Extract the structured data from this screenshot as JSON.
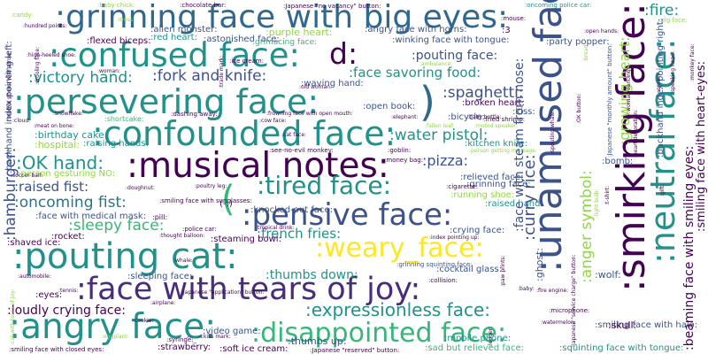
{
  "words": {
    "grinning_big_eyes": ":grinning face with big eyes:",
    "confused_face": ":confused face:",
    "d_token": "d:",
    "persevering_face": ":persevering face:",
    "close_paren": ")",
    "confounded_face": ":confounded face:",
    "musical_notes": ":musical notes:",
    "pouting_cat": ":pouting cat:",
    "tears_of_joy": ":face with tears of joy:",
    "angry_face": ":angry face:",
    "disappointed_face": ":disappointed face:",
    "pensive_face": ":pensive face:",
    "tired_face": ":tired face:",
    "weary_face": ":weary_face:",
    "unamused_face": ":unamused face:",
    "smirking_face": ":smirking face:",
    "neutral_face": ":neutral face:",
    "victory_hand": ":victory hand:",
    "fork_and_knife": ":fork and knife:",
    "pouting_face": ":pouting face:",
    "face_savoring_food": ":face savoring food:",
    "spaghetti": ":spaghetti:",
    "ok_hand": ":OK hand:",
    "raised_fist": ":raised fist:",
    "oncoming_fist": ":oncoming fist:",
    "open_paren": "(",
    "sleepy_face": ":sleepy face:",
    "french_fries": ":french fries:",
    "hamburger": ":hamburger:",
    "water_pistol": ":water pistol:",
    "pizza": ":pizza:",
    "curry_rice": ":curry rice:",
    "thumbs_down": ":thumbs down:",
    "expressionless_face": ":expressionless face:",
    "loudly_crying_face": ":loudly crying face:",
    "fire": ":fire:",
    "purple_heart": ":purple heart:",
    "angry_face_horns": ":angry face with horns:",
    "alien_monster": ":alien monster:",
    "red_heart": ":red heart:",
    "astonished_face": ":astonished face:",
    "flexed_biceps": ":flexed biceps:",
    "grimacing_face": ":grimacing face:",
    "winking_tongue": ":winking face with tongue:",
    "party_popper": ":party popper:",
    "beaming_face": ":beaming face with smiling eyes:",
    "smiling_heart_eyes": ":smiling face with heart-eyes:",
    "growing_heart": ":growing heart:",
    "anger_symbol": ":anger symbol:",
    "face_steam_nose": ":face with steam from nose:",
    "open_book": ":open book:",
    "broken_heart": ":broken heart:",
    "birthday_cake": ":birthday cake:",
    "person_gesturing_no": ":person gesturing NO:",
    "raising_hands": ":raising hands:",
    "knocked_out_face": ":knocked-out face:",
    "cocktail_glass": ":cocktail glass:",
    "thumbs_up": ":thumbs up:",
    "smiling_halo": ":smiling face with halo:",
    "squinting_tongue": ":squinting face with tongue:",
    "face_medical_mask": ":face with medical mask:",
    "rocket": ":rocket:",
    "shaved_ice": ":shaved ice:",
    "steaming_bowl": ":steaming bowl:",
    "crying_face": ":crying face:",
    "raised_hand": ":raised hand:",
    "sleeping_face": ":sleeping face:",
    "eyes": ":eyes:",
    "video_game": ":video game:",
    "strawberry": ":strawberry:",
    "soft_ice_cream": ":soft ice cream:",
    "mobile_phone": ":mobile phone:",
    "skull": ":skull:",
    "relieved_face": ":relieved face:",
    "grinning_face": ":grinning face:",
    "running_shoe": ":running shoe:",
    "bomb": ":bomb:",
    "kiss": ":kiss:",
    "wolf": ":wolf:",
    "ghost": ":ghost:",
    "kitchen_knife": ":kitchen knife:",
    "bicycle": ":bicycle:",
    "waving_hand": ":waving hand:",
    "hospital": ":hospital:",
    "backhand_left": ":backhand index pointing left:",
    "backhand_right": ":backhand index pointing right:",
    "emoticon": "(-:)",
    "small_caret": "^_^",
    "small_three": ":3",
    "sad_relieved": ":sad but relieved face:",
    "squinting_face": ":squinting face with tongue:",
    "japanese_vacancy": ":Japanese \"no vacancy\" button:",
    "japanese_reserved": ":Japanese \"reserved\" button:",
    "grinning_squinting": ":grinning squinting face:",
    "fried_shrimp": ":fried shrimp:",
    "chocolate_bar": ":chocolate bar:",
    "oncoming_police": ":oncoming police car:",
    "smiling_sunglasses": ":smiling face with sunglasses:",
    "see_no_evil": ":see-no-evil monkey:",
    "dashing_away": ":dashing away:",
    "shortcake": ":shortcake:",
    "face_open_mouth": ":frowning face with open mouth:",
    "smiling_closed_eyes": ":smiling face with closed eyes:",
    "pouting_face_small": ":pouting face:",
    "index_pointing_up": ":index pointing up:",
    "baby_chick": ":baby chick:",
    "candy": ":candy:",
    "mouse": ":mouse:",
    "pig_face": ":pig face:",
    "ok_button": ":OK button:",
    "monkey_face": ":monkey face:",
    "police_car": ":police car:",
    "ice_cream": ":ice cream:",
    "money_bag": ":money bag:",
    "cigarette": ":cigarette:",
    "pill": ":pill:",
    "heart_decoration": ":heart decoration:",
    "collision": ":collision:",
    "microphone": ":microphone:",
    "baby_bottle": ":baby bottle:",
    "tropical_drink": ":tropical drink:",
    "goblin": ":goblin:",
    "cookie": ":cookie:",
    "hundred_points": ":hundred points:",
    "high_heeled_shoe": ":high-heeled shoe:",
    "syringe": ":syringe:",
    "airplane": ":airplane:",
    "soccer_ball": ":soccer ball:",
    "tennis": ":tennis:",
    "whale": ":whale:",
    "fire_engine": ":fire engine:",
    "watermelon": ":watermelon:",
    "kiss_mark": ":kiss mark:",
    "speaking_head": ":speaking head:",
    "automobile": ":automobile:",
    "eggplant": ":eggplant:",
    "dress": ":dress:",
    "ambulance": ":ambulance:",
    "poultry_leg": ":poultry leg:",
    "paw_prints": ":paw prints:",
    "cat_face": ":cat face:",
    "drooling_face": ":drooling face:",
    "snowflake": ":snowflake:",
    "cloud": ":cloud:",
    "meat_on_bone": ":meat on bone:",
    "baby": ":baby:",
    "bread": ":bread:",
    "elephant": ":elephant:",
    "doughnut": ":doughnut:",
    "fallen_leaf": ":fallen leaf:",
    "crown": ":crown:",
    "gift": ":gift:",
    "muted_speaker": ":muted speaker:",
    "tshirt": ":t-shirt:",
    "woman": ":woman:",
    "thought_balloon": ":thought balloon:",
    "light_bulb": ":light bulb:",
    "person_massage": ":person getting massage:",
    "old_woman": ":old woman:",
    "trade_mark": ":trade mark:",
    "cow_face": ":cow face:",
    "woman_dancing": ":woman dancing:",
    "japanese_application": ":Japanese \"application\" button:",
    "japanese_monthly": ":Japanese \"monthly amount\" button:",
    "japanese_service": ":Japanese \"service charge\" button:",
    "squirting_whale": ":spouting whale:",
    "cat_face_joy": ":cat with tears of joy:",
    "mobile_arrow": ":mobile phone with arrow:",
    "open_hands": ":open hands:",
    "ledger": ":ledger:"
  },
  "colors": {
    "purple_dark": "#440154",
    "indigo": "#3b528b",
    "slate_blue": "#31688e",
    "teal": "#21918c",
    "sea_green": "#35b779",
    "lime": "#90d743",
    "yellow": "#fde725",
    "navy": "#472d7b",
    "blue": "#2c728e"
  }
}
